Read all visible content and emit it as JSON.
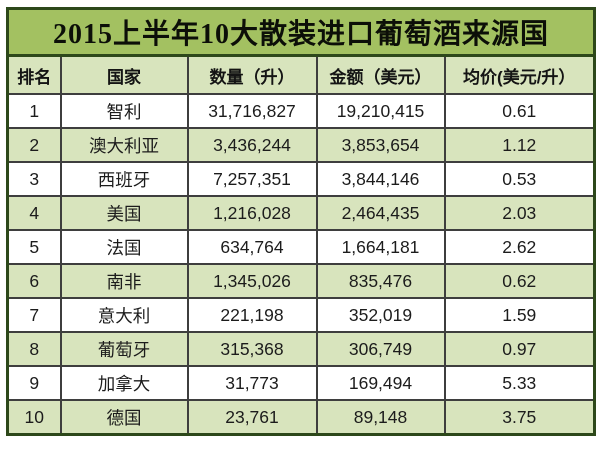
{
  "chart_data": {
    "type": "table",
    "title": "2015上半年10大散装进口葡萄酒来源国",
    "columns": [
      "排名",
      "国家",
      "数量（升）",
      "金额（美元）",
      "均价(美元/升）"
    ],
    "rows": [
      [
        "1",
        "智利",
        "31,716,827",
        "19,210,415",
        "0.61"
      ],
      [
        "2",
        "澳大利亚",
        "3,436,244",
        "3,853,654",
        "1.12"
      ],
      [
        "3",
        "西班牙",
        "7,257,351",
        "3,844,146",
        "0.53"
      ],
      [
        "4",
        "美国",
        "1,216,028",
        "2,464,435",
        "2.03"
      ],
      [
        "5",
        "法国",
        "634,764",
        "1,664,181",
        "2.62"
      ],
      [
        "6",
        "南非",
        "1,345,026",
        "835,476",
        "0.62"
      ],
      [
        "7",
        "意大利",
        "221,198",
        "352,019",
        "1.59"
      ],
      [
        "8",
        "葡萄牙",
        "315,368",
        "306,749",
        "0.97"
      ],
      [
        "9",
        "加拿大",
        "31,773",
        "169,494",
        "5.33"
      ],
      [
        "10",
        "德国",
        "23,761",
        "89,148",
        "3.75"
      ]
    ],
    "layout": {
      "row_striping": "odd ranks white, even ranks light green",
      "all_cells_centered": true
    },
    "colors": {
      "title_bg": "#a3c161",
      "title_text": "#0c0f08",
      "header_bg": "#d8e4bd",
      "row_green_bg": "#d8e4bd",
      "row_white_bg": "#ffffff",
      "border_outer": "#2d481a",
      "border_inner": "#3e3e3e",
      "text": "#1c1c1c",
      "page_bg": "#ffffff"
    }
  }
}
